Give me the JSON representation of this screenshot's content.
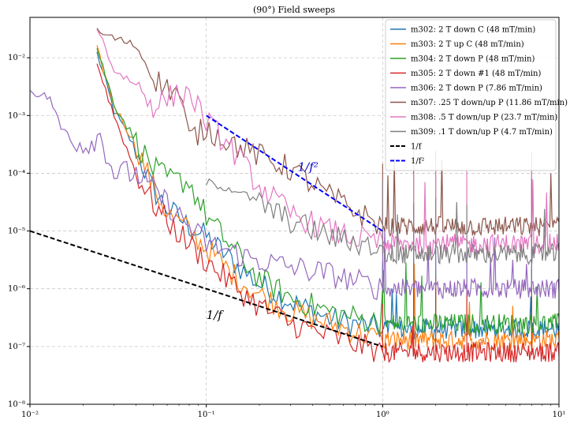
{
  "chart_data": {
    "type": "line",
    "title": "(90°) Field sweeps",
    "xscale": "log",
    "yscale": "log",
    "xlim": [
      0.01,
      10
    ],
    "ylim": [
      1e-08,
      0.05
    ],
    "grid": true,
    "legend_position": "top-right",
    "x_ticks": [
      {
        "value": 0.01,
        "label": "10⁻²"
      },
      {
        "value": 0.1,
        "label": "10⁻¹"
      },
      {
        "value": 1,
        "label": "10⁰"
      },
      {
        "value": 10,
        "label": "10¹"
      }
    ],
    "y_ticks": [
      {
        "value": 1e-08,
        "label": "10⁻⁸"
      },
      {
        "value": 1e-07,
        "label": "10⁻⁷"
      },
      {
        "value": 1e-06,
        "label": "10⁻⁶"
      },
      {
        "value": 1e-05,
        "label": "10⁻⁵"
      },
      {
        "value": 0.0001,
        "label": "10⁻⁴"
      },
      {
        "value": 0.001,
        "label": "10⁻³"
      },
      {
        "value": 0.01,
        "label": "10⁻²"
      }
    ],
    "annotations": [
      {
        "text": "1/f",
        "x": 0.1,
        "y": 3e-07,
        "color": "#000000"
      },
      {
        "text": "1/f²",
        "x": 0.33,
        "y": 0.00011,
        "color": "#0000cc"
      }
    ],
    "series": [
      {
        "name": "m302: 2 T down C (48 mT/min)",
        "color": "#1f77b4",
        "noise_floor": 2e-07,
        "points": [
          [
            0.024,
            0.012
          ],
          [
            0.03,
            0.0012
          ],
          [
            0.04,
            0.00025
          ],
          [
            0.05,
            5e-05
          ],
          [
            0.06,
            2.5e-05
          ],
          [
            0.08,
            1.2e-05
          ],
          [
            0.1,
            8e-06
          ],
          [
            0.15,
            2.5e-06
          ],
          [
            0.2,
            1.2e-06
          ],
          [
            0.3,
            6e-07
          ],
          [
            0.5,
            3e-07
          ],
          [
            1,
            2e-07
          ]
        ]
      },
      {
        "name": "m303: 2 T up C (48 mT/min)",
        "color": "#ff7f0e",
        "noise_floor": 1.3e-07,
        "points": [
          [
            0.024,
            0.014
          ],
          [
            0.03,
            0.0015
          ],
          [
            0.04,
            0.0003
          ],
          [
            0.05,
            6e-05
          ],
          [
            0.06,
            2e-05
          ],
          [
            0.08,
            1e-05
          ],
          [
            0.1,
            5e-06
          ],
          [
            0.15,
            1.5e-06
          ],
          [
            0.2,
            8e-07
          ],
          [
            0.3,
            4e-07
          ],
          [
            0.5,
            2.5e-07
          ],
          [
            1,
            1.3e-07
          ]
        ]
      },
      {
        "name": "m304: 2 T down P (48 mT/min)",
        "color": "#2ca02c",
        "noise_floor": 2.5e-07,
        "points": [
          [
            0.024,
            0.015
          ],
          [
            0.03,
            0.0016
          ],
          [
            0.04,
            0.00035
          ],
          [
            0.05,
            0.00012
          ],
          [
            0.06,
            8e-05
          ],
          [
            0.08,
            7e-05
          ],
          [
            0.1,
            1.8e-05
          ],
          [
            0.15,
            4e-06
          ],
          [
            0.2,
            1.5e-06
          ],
          [
            0.3,
            7e-07
          ],
          [
            0.5,
            4e-07
          ],
          [
            1,
            2.5e-07
          ]
        ]
      },
      {
        "name": "m305: 2 T down #1 (48 mT/min)",
        "color": "#d62728",
        "noise_floor": 8e-08,
        "points": [
          [
            0.024,
            0.008
          ],
          [
            0.03,
            0.001
          ],
          [
            0.04,
            0.0001
          ],
          [
            0.05,
            3e-05
          ],
          [
            0.06,
            1.5e-05
          ],
          [
            0.08,
            6e-06
          ],
          [
            0.1,
            3e-06
          ],
          [
            0.15,
            1e-06
          ],
          [
            0.2,
            5e-07
          ],
          [
            0.3,
            2.5e-07
          ],
          [
            0.5,
            1.5e-07
          ],
          [
            1,
            8e-08
          ]
        ]
      },
      {
        "name": "m306: 2 T down P (7.86 mT/min)",
        "color": "#9467bd",
        "noise_floor": 1e-06,
        "points": [
          [
            0.01,
            0.0027
          ],
          [
            0.013,
            0.002
          ],
          [
            0.015,
            0.0006
          ],
          [
            0.02,
            0.0003
          ],
          [
            0.025,
            0.00045
          ],
          [
            0.03,
            0.0001
          ],
          [
            0.04,
            0.0001
          ],
          [
            0.06,
            3e-05
          ],
          [
            0.08,
            1.2e-05
          ],
          [
            0.1,
            6e-06
          ],
          [
            0.2,
            3e-06
          ],
          [
            0.5,
            1.8e-06
          ],
          [
            1,
            1e-06
          ]
        ]
      },
      {
        "name": "m307: .25 T down/up P (11.86 mT/min)",
        "color": "#8c564b",
        "noise_floor": 1.2e-05,
        "points": [
          [
            0.024,
            0.028
          ],
          [
            0.04,
            0.016
          ],
          [
            0.05,
            0.0045
          ],
          [
            0.06,
            0.003
          ],
          [
            0.07,
            0.0025
          ],
          [
            0.08,
            0.0004
          ],
          [
            0.1,
            0.0006
          ],
          [
            0.15,
            0.0003
          ],
          [
            0.2,
            0.0002
          ],
          [
            0.3,
            0.00012
          ],
          [
            0.5,
            4e-05
          ],
          [
            1,
            1.2e-05
          ]
        ]
      },
      {
        "name": "m308: .5 T down/up P (23.7 mT/min)",
        "color": "#e377c2",
        "noise_floor": 6e-06,
        "points": [
          [
            0.024,
            0.035
          ],
          [
            0.03,
            0.006
          ],
          [
            0.04,
            0.0035
          ],
          [
            0.05,
            0.0015
          ],
          [
            0.06,
            0.002
          ],
          [
            0.08,
            0.0025
          ],
          [
            0.1,
            0.0008
          ],
          [
            0.15,
            0.0002
          ],
          [
            0.2,
            6e-05
          ],
          [
            0.3,
            2e-05
          ],
          [
            0.5,
            1e-05
          ],
          [
            1,
            6e-06
          ]
        ]
      },
      {
        "name": "m309: .1 T down/up P (4.7 mT/min)",
        "color": "#7f7f7f",
        "noise_floor": 4e-06,
        "points": [
          [
            0.1,
            7e-05
          ],
          [
            0.15,
            5e-05
          ],
          [
            0.2,
            3e-05
          ],
          [
            0.3,
            1.5e-05
          ],
          [
            0.5,
            8e-06
          ],
          [
            1,
            5e-06
          ]
        ]
      },
      {
        "name": "1/f",
        "color": "#000000",
        "dashed": true,
        "points": [
          [
            0.01,
            1e-05
          ],
          [
            1,
            1e-07
          ]
        ]
      },
      {
        "name": "1/f²",
        "color": "#0000ff",
        "dashed": true,
        "points": [
          [
            0.1,
            0.001
          ],
          [
            1,
            1e-05
          ]
        ]
      }
    ]
  }
}
